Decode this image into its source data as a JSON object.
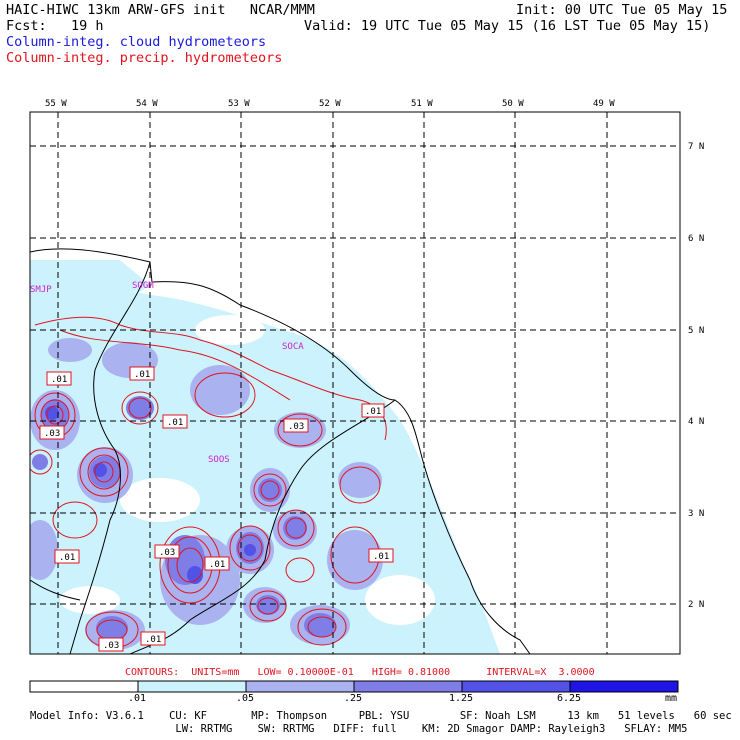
{
  "header": {
    "title": "HAIC-HIWC 13km ARW-GFS init   NCAR/MMM",
    "init": "Init: 00 UTC Tue 05 May 15",
    "fcst_label": "Fcst:   19 h",
    "valid": "Valid: 19 UTC Tue 05 May 15 (16 LST Tue 05 May 15)",
    "field_cloud": "Column-integ. cloud hydrometeors",
    "field_precip": "Column-integ. precip. hydrometeors"
  },
  "map": {
    "lon_labels": [
      "55 W",
      "54 W",
      "53 W",
      "52 W",
      "51 W",
      "50 W",
      "49 W"
    ],
    "lat_labels": [
      "7 N",
      "6 N",
      "5 N",
      "4 N",
      "3 N",
      "2 N"
    ],
    "stations": [
      "SMJP",
      "SOGM",
      "SOCA",
      "SOOS"
    ],
    "contour_labels": [
      ".01",
      ".01",
      ".03",
      ".01",
      ".03",
      ".01",
      ".03",
      ".01",
      ".01",
      ".01",
      ".03",
      ".01"
    ]
  },
  "contours_line": "CONTOURS:  UNITS=mm   LOW= 0.10000E-01   HIGH= 0.81000      INTERVAL=X  3.0000",
  "colorbar": {
    "ticks": [
      ".01",
      ".05",
      ".25",
      "1.25",
      "6.25"
    ],
    "unit": "mm",
    "colors": [
      "#ffffff",
      "#ccf2fd",
      "#aab2f0",
      "#7f7ee6",
      "#5252e6",
      "#1e14e6"
    ]
  },
  "footer": {
    "line1": "Model Info: V3.6.1    CU: KF       MP: Thompson     PBL: YSU        SF: Noah LSM     13 km   51 levels   60 sec",
    "line2": "                       LW: RRTMG    SW: RRTMG   DIFF: full    KM: 2D Smagor DAMP: Rayleigh3   SFLAY: MM5"
  }
}
